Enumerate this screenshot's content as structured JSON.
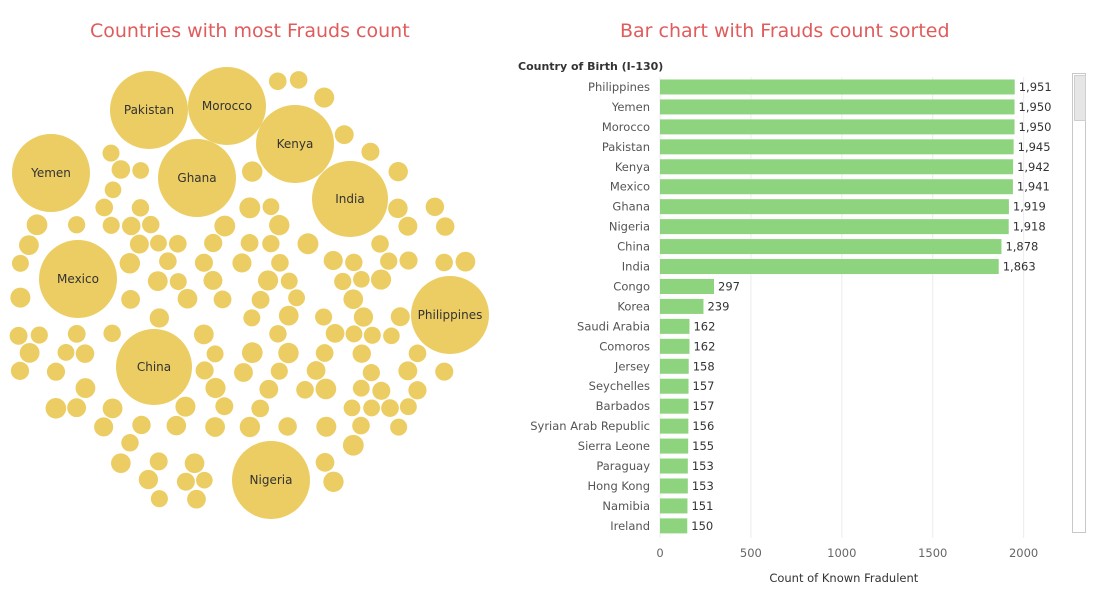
{
  "chart_data": [
    {
      "type": "bubble",
      "title": "Countries with most Frauds count",
      "labeled_bubbles": [
        {
          "label": "Philippines",
          "value": 1951
        },
        {
          "label": "Yemen",
          "value": 1950
        },
        {
          "label": "Morocco",
          "value": 1950
        },
        {
          "label": "Pakistan",
          "value": 1945
        },
        {
          "label": "Kenya",
          "value": 1942
        },
        {
          "label": "Mexico",
          "value": 1941
        },
        {
          "label": "Ghana",
          "value": 1919
        },
        {
          "label": "Nigeria",
          "value": 1918
        },
        {
          "label": "China",
          "value": 1878
        },
        {
          "label": "India",
          "value": 1863
        }
      ],
      "colors": {
        "bubble": "#eccd63"
      }
    },
    {
      "type": "bar",
      "orientation": "horizontal",
      "title": "Bar chart with Frauds count sorted",
      "category_header": "Country of Birth (I-130)",
      "xlabel": "Count of Known Fradulent",
      "xlim": [
        0,
        2200
      ],
      "xticks": [
        0,
        500,
        1000,
        1500,
        2000
      ],
      "categories": [
        "Philippines",
        "Yemen",
        "Morocco",
        "Pakistan",
        "Kenya",
        "Mexico",
        "Ghana",
        "Nigeria",
        "China",
        "India",
        "Congo",
        "Korea",
        "Saudi Arabia",
        "Comoros",
        "Jersey",
        "Seychelles",
        "Barbados",
        "Syrian Arab Republic",
        "Sierra Leone",
        "Paraguay",
        "Hong Kong",
        "Namibia",
        "Ireland"
      ],
      "values": [
        1951,
        1950,
        1950,
        1945,
        1942,
        1941,
        1919,
        1918,
        1878,
        1863,
        297,
        239,
        162,
        162,
        158,
        157,
        157,
        156,
        155,
        153,
        153,
        151,
        150
      ],
      "value_labels": [
        "1,951",
        "1,950",
        "1,950",
        "1,945",
        "1,942",
        "1,941",
        "1,919",
        "1,918",
        "1,878",
        "1,863",
        "297",
        "239",
        "162",
        "162",
        "158",
        "157",
        "157",
        "156",
        "155",
        "153",
        "153",
        "151",
        "150"
      ],
      "colors": {
        "bar": "#8ed37e"
      },
      "grid": true
    }
  ]
}
